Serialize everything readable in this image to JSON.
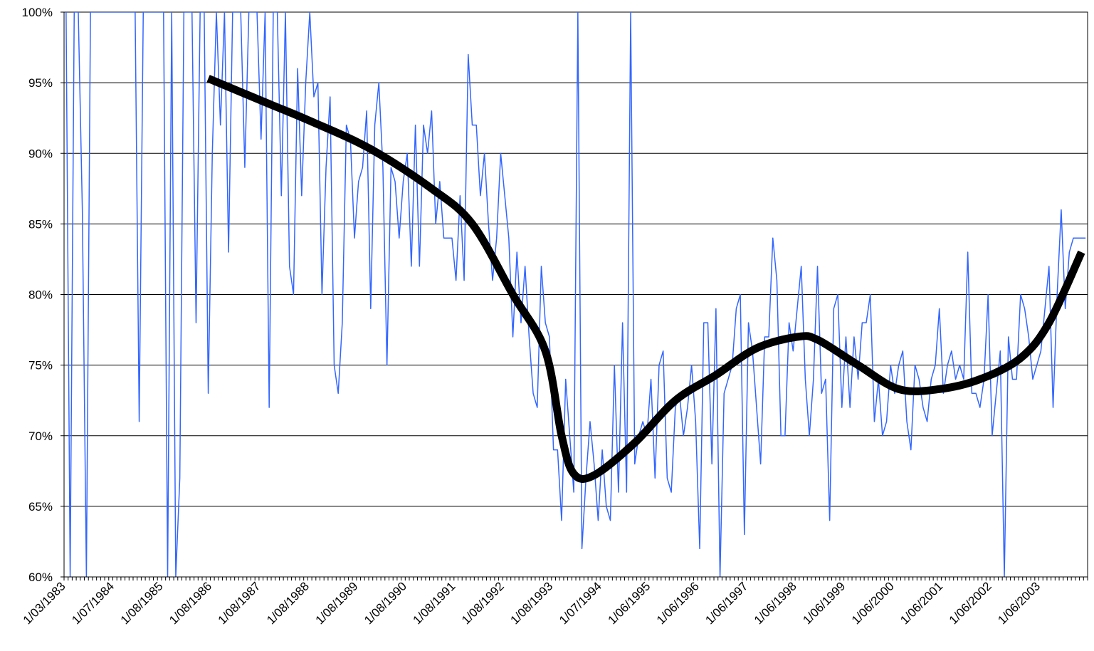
{
  "chart_data": {
    "type": "line",
    "categories": [
      "1/03/1983",
      null,
      null,
      null,
      null,
      null,
      null,
      null,
      null,
      null,
      null,
      null,
      "1/07/1984",
      null,
      null,
      null,
      null,
      null,
      null,
      null,
      null,
      null,
      null,
      null,
      "1/08/1985",
      null,
      null,
      null,
      null,
      null,
      null,
      null,
      null,
      null,
      null,
      null,
      "1/08/1986",
      null,
      null,
      null,
      null,
      null,
      null,
      null,
      null,
      null,
      null,
      null,
      "1/08/1987",
      null,
      null,
      null,
      null,
      null,
      null,
      null,
      null,
      null,
      null,
      null,
      "1/08/1988",
      null,
      null,
      null,
      null,
      null,
      null,
      null,
      null,
      null,
      null,
      null,
      "1/08/1989",
      null,
      null,
      null,
      null,
      null,
      null,
      null,
      null,
      null,
      null,
      null,
      "1/08/1990",
      null,
      null,
      null,
      null,
      null,
      null,
      null,
      null,
      null,
      null,
      null,
      "1/08/1991",
      null,
      null,
      null,
      null,
      null,
      null,
      null,
      null,
      null,
      null,
      null,
      "1/08/1992",
      null,
      null,
      null,
      null,
      null,
      null,
      null,
      null,
      null,
      null,
      null,
      "1/08/1993",
      null,
      null,
      null,
      null,
      null,
      null,
      null,
      null,
      null,
      null,
      null,
      "1/07/1994",
      null,
      null,
      null,
      null,
      null,
      null,
      null,
      null,
      null,
      null,
      null,
      "1/06/1995",
      null,
      null,
      null,
      null,
      null,
      null,
      null,
      null,
      null,
      null,
      null,
      "1/06/1996",
      null,
      null,
      null,
      null,
      null,
      null,
      null,
      null,
      null,
      null,
      null,
      "1/06/1997",
      null,
      null,
      null,
      null,
      null,
      null,
      null,
      null,
      null,
      null,
      null,
      "1/06/1998",
      null,
      null,
      null,
      null,
      null,
      null,
      null,
      null,
      null,
      null,
      null,
      "1/06/1999",
      null,
      null,
      null,
      null,
      null,
      null,
      null,
      null,
      null,
      null,
      null,
      "1/06/2000",
      null,
      null,
      null,
      null,
      null,
      null,
      null,
      null,
      null,
      null,
      null,
      "1/06/2001",
      null,
      null,
      null,
      null,
      null,
      null,
      null,
      null,
      null,
      null,
      null,
      "1/06/2002",
      null,
      null,
      null,
      null,
      null,
      null,
      null,
      null,
      null,
      null,
      null,
      "1/06/2003",
      null,
      null,
      null,
      null,
      null,
      null,
      null,
      null,
      null,
      null,
      null
    ],
    "series": [
      {
        "color": "#3366ff",
        "values": [
          100,
          60,
          100,
          100,
          86,
          60,
          100,
          100,
          100,
          100,
          100,
          100,
          100,
          100,
          100,
          100,
          100,
          100,
          71,
          100,
          100,
          100,
          100,
          100,
          100,
          60,
          100,
          60,
          67,
          100,
          100,
          100,
          78,
          100,
          100,
          73,
          90,
          100,
          92,
          100,
          83,
          100,
          100,
          100,
          89,
          100,
          100,
          100,
          91,
          100,
          72,
          100,
          100,
          87,
          100,
          82,
          80,
          96,
          87,
          95,
          100,
          94,
          95,
          80,
          89,
          94,
          75,
          73,
          78,
          92,
          91,
          84,
          88,
          89,
          93,
          79,
          92,
          95,
          89,
          75,
          89,
          88,
          84,
          88,
          90,
          82,
          92,
          82,
          92,
          90,
          93,
          85,
          88,
          84,
          84,
          84,
          81,
          87,
          81,
          97,
          92,
          92,
          87,
          90,
          85,
          81,
          84,
          90,
          87,
          84,
          77,
          83,
          78,
          82,
          77,
          73,
          72,
          82,
          78,
          77,
          69,
          69,
          64,
          74,
          70,
          66,
          100,
          62,
          67,
          71,
          68,
          64,
          69,
          65,
          64,
          75,
          66,
          78,
          66,
          100,
          68,
          70,
          71,
          70,
          74,
          67,
          75,
          76,
          67,
          66,
          72,
          73,
          70,
          72,
          75,
          71,
          62,
          78,
          78,
          68,
          79,
          60,
          73,
          74,
          75,
          79,
          80,
          63,
          78,
          76,
          72,
          68,
          77,
          77,
          84,
          81,
          70,
          70,
          78,
          76,
          79,
          82,
          74,
          70,
          74,
          82,
          73,
          74,
          64,
          79,
          80,
          72,
          77,
          72,
          77,
          74,
          78,
          78,
          80,
          71,
          74,
          70,
          71,
          75,
          73,
          75,
          76,
          71,
          69,
          75,
          74,
          72,
          71,
          74,
          75,
          79,
          73,
          75,
          76,
          74,
          75,
          74,
          83,
          73,
          73,
          72,
          74,
          80,
          70,
          73,
          76,
          60,
          77,
          74,
          74,
          80,
          79,
          77,
          74,
          75,
          76,
          79,
          82,
          72,
          80,
          86,
          79,
          83,
          84,
          84,
          84,
          84
        ]
      },
      {
        "color": "#000000",
        "x": [
          35,
          50,
          60,
          75,
          90,
          100,
          110,
          118,
          122,
          125,
          130,
          140,
          150,
          160,
          170,
          180,
          185,
          195,
          205,
          215,
          225,
          235,
          242,
          250
        ],
        "values": [
          95.3,
          93.5,
          92.3,
          90.3,
          87.5,
          85,
          80,
          76,
          70,
          67.3,
          67.2,
          69.5,
          72.5,
          74.3,
          76.2,
          77,
          76.8,
          75,
          73.3,
          73.3,
          74,
          75.5,
          78,
          83
        ]
      }
    ],
    "ylim": [
      60,
      100
    ],
    "yticks": [
      {
        "value": 60,
        "label": "60%"
      },
      {
        "value": 65,
        "label": "65%"
      },
      {
        "value": 70,
        "label": "70%"
      },
      {
        "value": 75,
        "label": "75%"
      },
      {
        "value": 80,
        "label": "80%"
      },
      {
        "value": 85,
        "label": "85%"
      },
      {
        "value": 90,
        "label": "90%"
      },
      {
        "value": 95,
        "label": "95%"
      },
      {
        "value": 100,
        "label": "100%"
      }
    ],
    "grid": true
  }
}
